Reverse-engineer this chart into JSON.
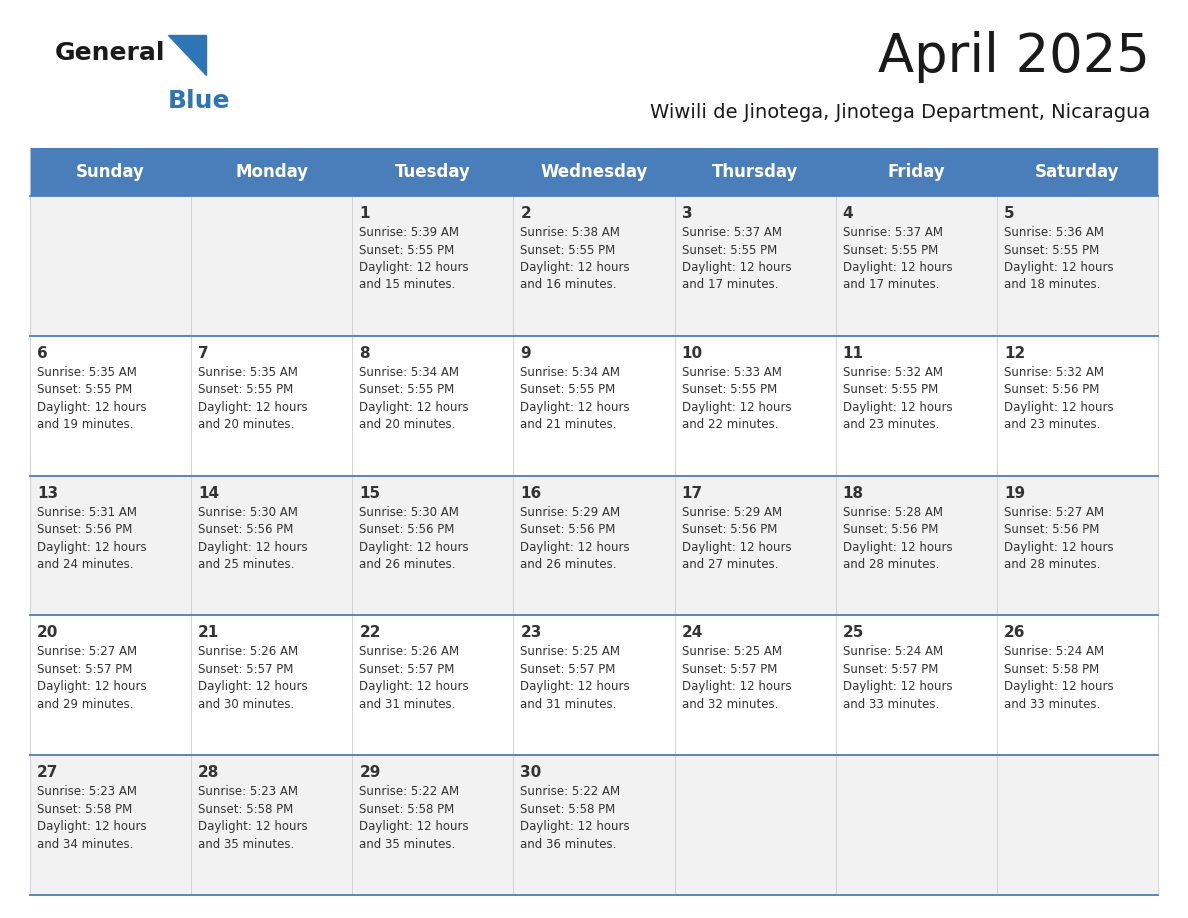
{
  "title": "April 2025",
  "subtitle": "Wiwili de Jinotega, Jinotega Department, Nicaragua",
  "days_of_week": [
    "Sunday",
    "Monday",
    "Tuesday",
    "Wednesday",
    "Thursday",
    "Friday",
    "Saturday"
  ],
  "header_bg": "#4A7EBB",
  "header_text": "#FFFFFF",
  "odd_row_bg": "#F2F2F2",
  "even_row_bg": "#FFFFFF",
  "cell_border": "#4A7EBB",
  "title_color": "#1a1a1a",
  "subtitle_color": "#1a1a1a",
  "day_text_color": "#333333",
  "logo_general_color": "#1a1a1a",
  "logo_blue_color": "#2E75B6",
  "calendar_data": [
    [
      {
        "day": "",
        "info": ""
      },
      {
        "day": "",
        "info": ""
      },
      {
        "day": "1",
        "info": "Sunrise: 5:39 AM\nSunset: 5:55 PM\nDaylight: 12 hours\nand 15 minutes."
      },
      {
        "day": "2",
        "info": "Sunrise: 5:38 AM\nSunset: 5:55 PM\nDaylight: 12 hours\nand 16 minutes."
      },
      {
        "day": "3",
        "info": "Sunrise: 5:37 AM\nSunset: 5:55 PM\nDaylight: 12 hours\nand 17 minutes."
      },
      {
        "day": "4",
        "info": "Sunrise: 5:37 AM\nSunset: 5:55 PM\nDaylight: 12 hours\nand 17 minutes."
      },
      {
        "day": "5",
        "info": "Sunrise: 5:36 AM\nSunset: 5:55 PM\nDaylight: 12 hours\nand 18 minutes."
      }
    ],
    [
      {
        "day": "6",
        "info": "Sunrise: 5:35 AM\nSunset: 5:55 PM\nDaylight: 12 hours\nand 19 minutes."
      },
      {
        "day": "7",
        "info": "Sunrise: 5:35 AM\nSunset: 5:55 PM\nDaylight: 12 hours\nand 20 minutes."
      },
      {
        "day": "8",
        "info": "Sunrise: 5:34 AM\nSunset: 5:55 PM\nDaylight: 12 hours\nand 20 minutes."
      },
      {
        "day": "9",
        "info": "Sunrise: 5:34 AM\nSunset: 5:55 PM\nDaylight: 12 hours\nand 21 minutes."
      },
      {
        "day": "10",
        "info": "Sunrise: 5:33 AM\nSunset: 5:55 PM\nDaylight: 12 hours\nand 22 minutes."
      },
      {
        "day": "11",
        "info": "Sunrise: 5:32 AM\nSunset: 5:55 PM\nDaylight: 12 hours\nand 23 minutes."
      },
      {
        "day": "12",
        "info": "Sunrise: 5:32 AM\nSunset: 5:56 PM\nDaylight: 12 hours\nand 23 minutes."
      }
    ],
    [
      {
        "day": "13",
        "info": "Sunrise: 5:31 AM\nSunset: 5:56 PM\nDaylight: 12 hours\nand 24 minutes."
      },
      {
        "day": "14",
        "info": "Sunrise: 5:30 AM\nSunset: 5:56 PM\nDaylight: 12 hours\nand 25 minutes."
      },
      {
        "day": "15",
        "info": "Sunrise: 5:30 AM\nSunset: 5:56 PM\nDaylight: 12 hours\nand 26 minutes."
      },
      {
        "day": "16",
        "info": "Sunrise: 5:29 AM\nSunset: 5:56 PM\nDaylight: 12 hours\nand 26 minutes."
      },
      {
        "day": "17",
        "info": "Sunrise: 5:29 AM\nSunset: 5:56 PM\nDaylight: 12 hours\nand 27 minutes."
      },
      {
        "day": "18",
        "info": "Sunrise: 5:28 AM\nSunset: 5:56 PM\nDaylight: 12 hours\nand 28 minutes."
      },
      {
        "day": "19",
        "info": "Sunrise: 5:27 AM\nSunset: 5:56 PM\nDaylight: 12 hours\nand 28 minutes."
      }
    ],
    [
      {
        "day": "20",
        "info": "Sunrise: 5:27 AM\nSunset: 5:57 PM\nDaylight: 12 hours\nand 29 minutes."
      },
      {
        "day": "21",
        "info": "Sunrise: 5:26 AM\nSunset: 5:57 PM\nDaylight: 12 hours\nand 30 minutes."
      },
      {
        "day": "22",
        "info": "Sunrise: 5:26 AM\nSunset: 5:57 PM\nDaylight: 12 hours\nand 31 minutes."
      },
      {
        "day": "23",
        "info": "Sunrise: 5:25 AM\nSunset: 5:57 PM\nDaylight: 12 hours\nand 31 minutes."
      },
      {
        "day": "24",
        "info": "Sunrise: 5:25 AM\nSunset: 5:57 PM\nDaylight: 12 hours\nand 32 minutes."
      },
      {
        "day": "25",
        "info": "Sunrise: 5:24 AM\nSunset: 5:57 PM\nDaylight: 12 hours\nand 33 minutes."
      },
      {
        "day": "26",
        "info": "Sunrise: 5:24 AM\nSunset: 5:58 PM\nDaylight: 12 hours\nand 33 minutes."
      }
    ],
    [
      {
        "day": "27",
        "info": "Sunrise: 5:23 AM\nSunset: 5:58 PM\nDaylight: 12 hours\nand 34 minutes."
      },
      {
        "day": "28",
        "info": "Sunrise: 5:23 AM\nSunset: 5:58 PM\nDaylight: 12 hours\nand 35 minutes."
      },
      {
        "day": "29",
        "info": "Sunrise: 5:22 AM\nSunset: 5:58 PM\nDaylight: 12 hours\nand 35 minutes."
      },
      {
        "day": "30",
        "info": "Sunrise: 5:22 AM\nSunset: 5:58 PM\nDaylight: 12 hours\nand 36 minutes."
      },
      {
        "day": "",
        "info": ""
      },
      {
        "day": "",
        "info": ""
      },
      {
        "day": "",
        "info": ""
      }
    ]
  ]
}
